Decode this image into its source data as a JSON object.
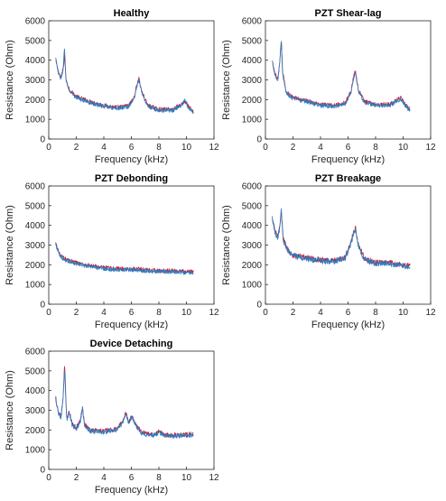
{
  "colors": {
    "series_blue": "#2a7fc0",
    "series_red": "#c81e3a",
    "axis": "#262626",
    "background": "#ffffff"
  },
  "chart_data": [
    {
      "type": "line",
      "title": "Healthy",
      "xlabel": "Frequency (kHz)",
      "ylabel": "Resistance (Ohm)",
      "xlim": [
        0,
        12
      ],
      "ylim": [
        0,
        6000
      ],
      "xticks": [
        0,
        2,
        4,
        6,
        8,
        10,
        12
      ],
      "yticks": [
        0,
        1000,
        2000,
        3000,
        4000,
        5000,
        6000
      ],
      "grid": false,
      "freq_range_khz": [
        0.5,
        10.5
      ],
      "noise_ohm": 110,
      "series": [
        {
          "color_key": "series_red",
          "y": [
            [
              0.5,
              4000
            ],
            [
              0.7,
              3400
            ],
            [
              0.9,
              3100
            ],
            [
              1.05,
              3500
            ],
            [
              1.15,
              4300
            ],
            [
              1.25,
              3000
            ],
            [
              1.5,
              2500
            ],
            [
              2,
              2150
            ],
            [
              3,
              1900
            ],
            [
              4,
              1700
            ],
            [
              5,
              1600
            ],
            [
              5.8,
              1700
            ],
            [
              6.2,
              2100
            ],
            [
              6.45,
              2900
            ],
            [
              6.55,
              3100
            ],
            [
              6.75,
              2400
            ],
            [
              7.2,
              1700
            ],
            [
              8,
              1500
            ],
            [
              9,
              1500
            ],
            [
              9.6,
              1750
            ],
            [
              9.9,
              1900
            ],
            [
              10.2,
              1600
            ],
            [
              10.5,
              1400
            ]
          ]
        },
        {
          "color_key": "series_blue",
          "y": [
            [
              0.5,
              4100
            ],
            [
              0.7,
              3350
            ],
            [
              0.9,
              3050
            ],
            [
              1.05,
              3700
            ],
            [
              1.15,
              4650
            ],
            [
              1.25,
              2950
            ],
            [
              1.5,
              2450
            ],
            [
              2,
              2100
            ],
            [
              3,
              1850
            ],
            [
              4,
              1650
            ],
            [
              5,
              1550
            ],
            [
              5.8,
              1650
            ],
            [
              6.2,
              2050
            ],
            [
              6.45,
              2850
            ],
            [
              6.55,
              3000
            ],
            [
              6.75,
              2350
            ],
            [
              7.2,
              1650
            ],
            [
              8,
              1450
            ],
            [
              9,
              1450
            ],
            [
              9.6,
              1700
            ],
            [
              9.9,
              1950
            ],
            [
              10.2,
              1550
            ],
            [
              10.5,
              1350
            ]
          ]
        }
      ]
    },
    {
      "type": "line",
      "title": "PZT Shear-lag",
      "xlabel": "Frequency (kHz)",
      "ylabel": "Resistance (Ohm)",
      "xlim": [
        0,
        12
      ],
      "ylim": [
        0,
        6000
      ],
      "xticks": [
        0,
        2,
        4,
        6,
        8,
        10,
        12
      ],
      "yticks": [
        0,
        1000,
        2000,
        3000,
        4000,
        5000,
        6000
      ],
      "grid": false,
      "freq_range_khz": [
        0.5,
        10.5
      ],
      "noise_ohm": 110,
      "series": [
        {
          "color_key": "series_red",
          "y": [
            [
              0.5,
              3900
            ],
            [
              0.7,
              3300
            ],
            [
              0.9,
              3000
            ],
            [
              1.05,
              3900
            ],
            [
              1.15,
              5100
            ],
            [
              1.25,
              3400
            ],
            [
              1.5,
              2400
            ],
            [
              2,
              2100
            ],
            [
              3,
              1950
            ],
            [
              4,
              1750
            ],
            [
              5,
              1700
            ],
            [
              5.8,
              1850
            ],
            [
              6.2,
              2400
            ],
            [
              6.45,
              3300
            ],
            [
              6.55,
              3400
            ],
            [
              6.75,
              2500
            ],
            [
              7.2,
              1900
            ],
            [
              8,
              1750
            ],
            [
              9,
              1750
            ],
            [
              9.5,
              1950
            ],
            [
              9.8,
              2100
            ],
            [
              10.2,
              1700
            ],
            [
              10.5,
              1500
            ]
          ]
        },
        {
          "color_key": "series_blue",
          "y": [
            [
              0.5,
              3950
            ],
            [
              0.7,
              3250
            ],
            [
              0.9,
              2950
            ],
            [
              1.05,
              4000
            ],
            [
              1.15,
              4950
            ],
            [
              1.25,
              3300
            ],
            [
              1.5,
              2350
            ],
            [
              2,
              2050
            ],
            [
              3,
              1900
            ],
            [
              4,
              1700
            ],
            [
              5,
              1650
            ],
            [
              5.8,
              1800
            ],
            [
              6.2,
              2350
            ],
            [
              6.45,
              3200
            ],
            [
              6.55,
              3350
            ],
            [
              6.75,
              2450
            ],
            [
              7.2,
              1850
            ],
            [
              8,
              1700
            ],
            [
              9,
              1700
            ],
            [
              9.5,
              1900
            ],
            [
              9.8,
              2050
            ],
            [
              10.2,
              1650
            ],
            [
              10.5,
              1450
            ]
          ]
        }
      ]
    },
    {
      "type": "line",
      "title": "PZT Debonding",
      "xlabel": "Frequency (kHz)",
      "ylabel": "Resistance (Ohm)",
      "xlim": [
        0,
        12
      ],
      "ylim": [
        0,
        6000
      ],
      "xticks": [
        0,
        2,
        4,
        6,
        8,
        10,
        12
      ],
      "yticks": [
        0,
        1000,
        2000,
        3000,
        4000,
        5000,
        6000
      ],
      "grid": false,
      "freq_range_khz": [
        0.5,
        10.5
      ],
      "noise_ohm": 110,
      "series": [
        {
          "color_key": "series_red",
          "y": [
            [
              0.5,
              3100
            ],
            [
              0.8,
              2500
            ],
            [
              1.2,
              2300
            ],
            [
              2,
              2100
            ],
            [
              3,
              1950
            ],
            [
              4,
              1850
            ],
            [
              5,
              1800
            ],
            [
              6,
              1800
            ],
            [
              7,
              1750
            ],
            [
              8,
              1700
            ],
            [
              9,
              1700
            ],
            [
              10,
              1650
            ],
            [
              10.5,
              1650
            ]
          ]
        },
        {
          "color_key": "series_blue",
          "y": [
            [
              0.5,
              3050
            ],
            [
              0.8,
              2450
            ],
            [
              1.2,
              2250
            ],
            [
              2,
              2050
            ],
            [
              3,
              1900
            ],
            [
              4,
              1800
            ],
            [
              5,
              1750
            ],
            [
              6,
              1750
            ],
            [
              7,
              1700
            ],
            [
              8,
              1650
            ],
            [
              9,
              1650
            ],
            [
              10,
              1600
            ],
            [
              10.5,
              1600
            ]
          ]
        }
      ]
    },
    {
      "type": "line",
      "title": "PZT Breakage",
      "xlabel": "Frequency (kHz)",
      "ylabel": "Resistance (Ohm)",
      "xlim": [
        0,
        12
      ],
      "ylim": [
        0,
        6000
      ],
      "xticks": [
        0,
        2,
        4,
        6,
        8,
        10,
        12
      ],
      "yticks": [
        0,
        1000,
        2000,
        3000,
        4000,
        5000,
        6000
      ],
      "grid": false,
      "freq_range_khz": [
        0.5,
        10.5
      ],
      "noise_ohm": 150,
      "series": [
        {
          "color_key": "series_red",
          "y": [
            [
              0.5,
              4300
            ],
            [
              0.7,
              3700
            ],
            [
              0.9,
              3400
            ],
            [
              1.05,
              3900
            ],
            [
              1.15,
              4700
            ],
            [
              1.3,
              3300
            ],
            [
              1.6,
              2800
            ],
            [
              2,
              2500
            ],
            [
              3,
              2350
            ],
            [
              4,
              2250
            ],
            [
              5,
              2200
            ],
            [
              5.8,
              2400
            ],
            [
              6.2,
              3100
            ],
            [
              6.45,
              3800
            ],
            [
              6.55,
              3850
            ],
            [
              6.75,
              3000
            ],
            [
              7.2,
              2300
            ],
            [
              8,
              2100
            ],
            [
              9,
              2100
            ],
            [
              10,
              2000
            ],
            [
              10.5,
              1950
            ]
          ]
        },
        {
          "color_key": "series_blue",
          "y": [
            [
              0.5,
              4400
            ],
            [
              0.7,
              3650
            ],
            [
              0.9,
              3350
            ],
            [
              1.05,
              4100
            ],
            [
              1.15,
              4850
            ],
            [
              1.3,
              3250
            ],
            [
              1.6,
              2750
            ],
            [
              2,
              2450
            ],
            [
              3,
              2300
            ],
            [
              4,
              2200
            ],
            [
              5,
              2150
            ],
            [
              5.8,
              2350
            ],
            [
              6.2,
              3050
            ],
            [
              6.45,
              3700
            ],
            [
              6.55,
              3750
            ],
            [
              6.75,
              2950
            ],
            [
              7.2,
              2250
            ],
            [
              8,
              2050
            ],
            [
              9,
              2050
            ],
            [
              10,
              1950
            ],
            [
              10.5,
              1900
            ]
          ]
        }
      ]
    },
    {
      "type": "line",
      "title": "Device Detaching",
      "xlabel": "Frequency (kHz)",
      "ylabel": "Resistance (Ohm)",
      "xlim": [
        0,
        12
      ],
      "ylim": [
        0,
        6000
      ],
      "xticks": [
        0,
        2,
        4,
        6,
        8,
        10,
        12
      ],
      "yticks": [
        0,
        1000,
        2000,
        3000,
        4000,
        5000,
        6000
      ],
      "grid": false,
      "freq_range_khz": [
        0.5,
        10.5
      ],
      "noise_ohm": 120,
      "series": [
        {
          "color_key": "series_red",
          "y": [
            [
              0.5,
              3600
            ],
            [
              0.7,
              2900
            ],
            [
              0.9,
              2700
            ],
            [
              1.05,
              3600
            ],
            [
              1.15,
              5400
            ],
            [
              1.3,
              2600
            ],
            [
              1.5,
              2900
            ],
            [
              1.7,
              2300
            ],
            [
              2,
              2100
            ],
            [
              2.3,
              2500
            ],
            [
              2.45,
              3200
            ],
            [
              2.6,
              2300
            ],
            [
              3,
              2000
            ],
            [
              4,
              1950
            ],
            [
              5,
              2050
            ],
            [
              5.4,
              2500
            ],
            [
              5.6,
              2900
            ],
            [
              5.8,
              2400
            ],
            [
              6.05,
              2700
            ],
            [
              6.3,
              2300
            ],
            [
              6.7,
              1900
            ],
            [
              7.5,
              1750
            ],
            [
              8,
              1900
            ],
            [
              8.5,
              1750
            ],
            [
              9.5,
              1750
            ],
            [
              10.5,
              1800
            ]
          ]
        },
        {
          "color_key": "series_blue",
          "y": [
            [
              0.5,
              3650
            ],
            [
              0.7,
              2850
            ],
            [
              0.9,
              2650
            ],
            [
              1.05,
              3800
            ],
            [
              1.15,
              5200
            ],
            [
              1.3,
              2550
            ],
            [
              1.5,
              2850
            ],
            [
              1.7,
              2250
            ],
            [
              2,
              2050
            ],
            [
              2.3,
              2450
            ],
            [
              2.45,
              3100
            ],
            [
              2.6,
              2250
            ],
            [
              3,
              1950
            ],
            [
              4,
              1900
            ],
            [
              5,
              2000
            ],
            [
              5.4,
              2450
            ],
            [
              5.6,
              2800
            ],
            [
              5.8,
              2350
            ],
            [
              6.05,
              2650
            ],
            [
              6.3,
              2250
            ],
            [
              6.7,
              1850
            ],
            [
              7.5,
              1700
            ],
            [
              8,
              1850
            ],
            [
              8.5,
              1700
            ],
            [
              9.5,
              1700
            ],
            [
              10.5,
              1750
            ]
          ]
        }
      ]
    }
  ]
}
